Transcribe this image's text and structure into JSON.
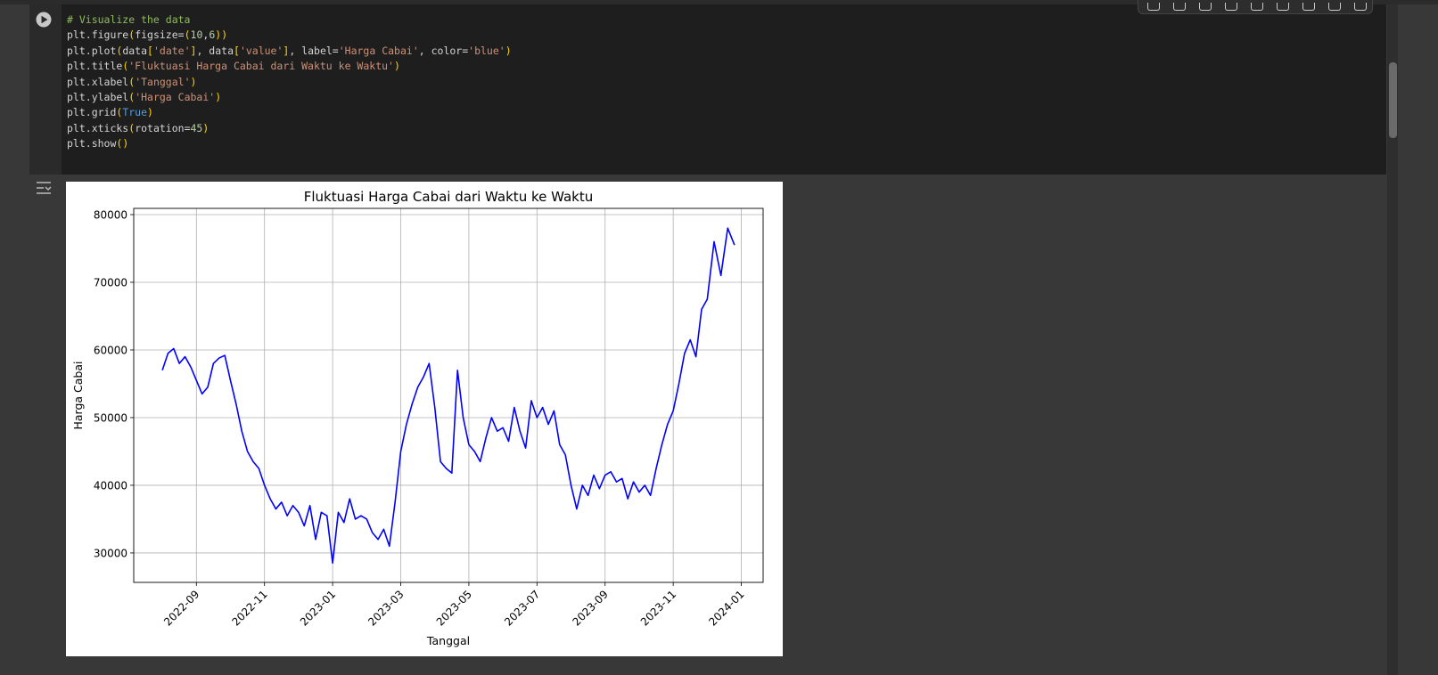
{
  "cell": {
    "code": [
      [
        "# Visualize the data"
      ],
      [
        "plt.figure",
        "(",
        "figsize=",
        "(",
        "10",
        ",",
        "6",
        ")",
        ")"
      ],
      [
        "plt.plot",
        "(",
        "data",
        "[",
        "'date'",
        "]",
        ", data",
        "[",
        "'value'",
        "]",
        ", label=",
        "'Harga Cabai'",
        ", color=",
        "'blue'",
        ")"
      ],
      [
        "plt.title",
        "(",
        "'Fluktuasi Harga Cabai dari Waktu ke Waktu'",
        ")"
      ],
      [
        "plt.xlabel",
        "(",
        "'Tanggal'",
        ")"
      ],
      [
        "plt.ylabel",
        "(",
        "'Harga Cabai'",
        ")"
      ],
      [
        "plt.grid",
        "(",
        "True",
        ")"
      ],
      [
        "plt.xticks",
        "(",
        "rotation=",
        "45",
        ")"
      ],
      [
        "plt.show",
        "(",
        ")"
      ]
    ]
  },
  "chart_data": {
    "type": "line",
    "title": "Fluktuasi Harga Cabai dari Waktu ke Waktu",
    "x_label": "Tanggal",
    "y_label": "Harga Cabai",
    "x": [
      "2022-08",
      "2022-08",
      "2022-08",
      "2022-08",
      "2022-08",
      "2022-08",
      "2022-09",
      "2022-09",
      "2022-09",
      "2022-09",
      "2022-09",
      "2022-09",
      "2022-10",
      "2022-10",
      "2022-10",
      "2022-10",
      "2022-10",
      "2022-10",
      "2022-11",
      "2022-11",
      "2022-11",
      "2022-11",
      "2022-11",
      "2022-11",
      "2022-12",
      "2022-12",
      "2022-12",
      "2022-12",
      "2022-12",
      "2022-12",
      "2023-01",
      "2023-01",
      "2023-01",
      "2023-01",
      "2023-01",
      "2023-01",
      "2023-02",
      "2023-02",
      "2023-02",
      "2023-02",
      "2023-02",
      "2023-02",
      "2023-03",
      "2023-03",
      "2023-03",
      "2023-03",
      "2023-03",
      "2023-03",
      "2023-04",
      "2023-04",
      "2023-04",
      "2023-04",
      "2023-04",
      "2023-04",
      "2023-05",
      "2023-05",
      "2023-05",
      "2023-05",
      "2023-05",
      "2023-05",
      "2023-06",
      "2023-06",
      "2023-06",
      "2023-06",
      "2023-06",
      "2023-06",
      "2023-07",
      "2023-07",
      "2023-07",
      "2023-07",
      "2023-07",
      "2023-07",
      "2023-08",
      "2023-08",
      "2023-08",
      "2023-08",
      "2023-08",
      "2023-08",
      "2023-09",
      "2023-09",
      "2023-09",
      "2023-09",
      "2023-09",
      "2023-09",
      "2023-10",
      "2023-10",
      "2023-10",
      "2023-10",
      "2023-10",
      "2023-10",
      "2023-11",
      "2023-11",
      "2023-11",
      "2023-11",
      "2023-11",
      "2023-11",
      "2023-12",
      "2023-12",
      "2023-12",
      "2023-12",
      "2023-12"
    ],
    "series": [
      {
        "name": "Harga Cabai",
        "color": "#0000ff",
        "values": [
          57000,
          59500,
          60200,
          58000,
          59000,
          57500,
          55500,
          53500,
          54500,
          58000,
          58800,
          59200,
          55500,
          52000,
          48000,
          45000,
          43500,
          42500,
          40000,
          38000,
          36500,
          37500,
          35500,
          37000,
          36000,
          34000,
          37000,
          32000,
          36000,
          35500,
          28500,
          36000,
          34500,
          38000,
          35000,
          35500,
          35000,
          33000,
          32000,
          33500,
          31000,
          37500,
          45000,
          49000,
          52000,
          54500,
          56000,
          58000,
          51500,
          43500,
          42500,
          41800,
          57000,
          50000,
          46000,
          45000,
          43500,
          47000,
          50000,
          48000,
          48500,
          46500,
          51500,
          48000,
          45500,
          52500,
          50000,
          51500,
          49000,
          51000,
          46000,
          44500,
          40000,
          36500,
          40000,
          38500,
          41500,
          39500,
          41500,
          42000,
          40500,
          41000,
          38000,
          40500,
          39000,
          40000,
          38500,
          42500,
          46000,
          49000,
          51000,
          55000,
          59500,
          61500,
          59000,
          66000,
          67500,
          76000,
          71000,
          78000,
          75500
        ]
      }
    ],
    "ylim": [
      25650,
      80920
    ],
    "yticks": [
      30000,
      40000,
      50000,
      60000,
      70000,
      80000
    ],
    "xticks": [
      "2022-09",
      "2022-11",
      "2023-01",
      "2023-03",
      "2023-05",
      "2023-07",
      "2023-09",
      "2023-11",
      "2024-01"
    ],
    "grid": true
  }
}
